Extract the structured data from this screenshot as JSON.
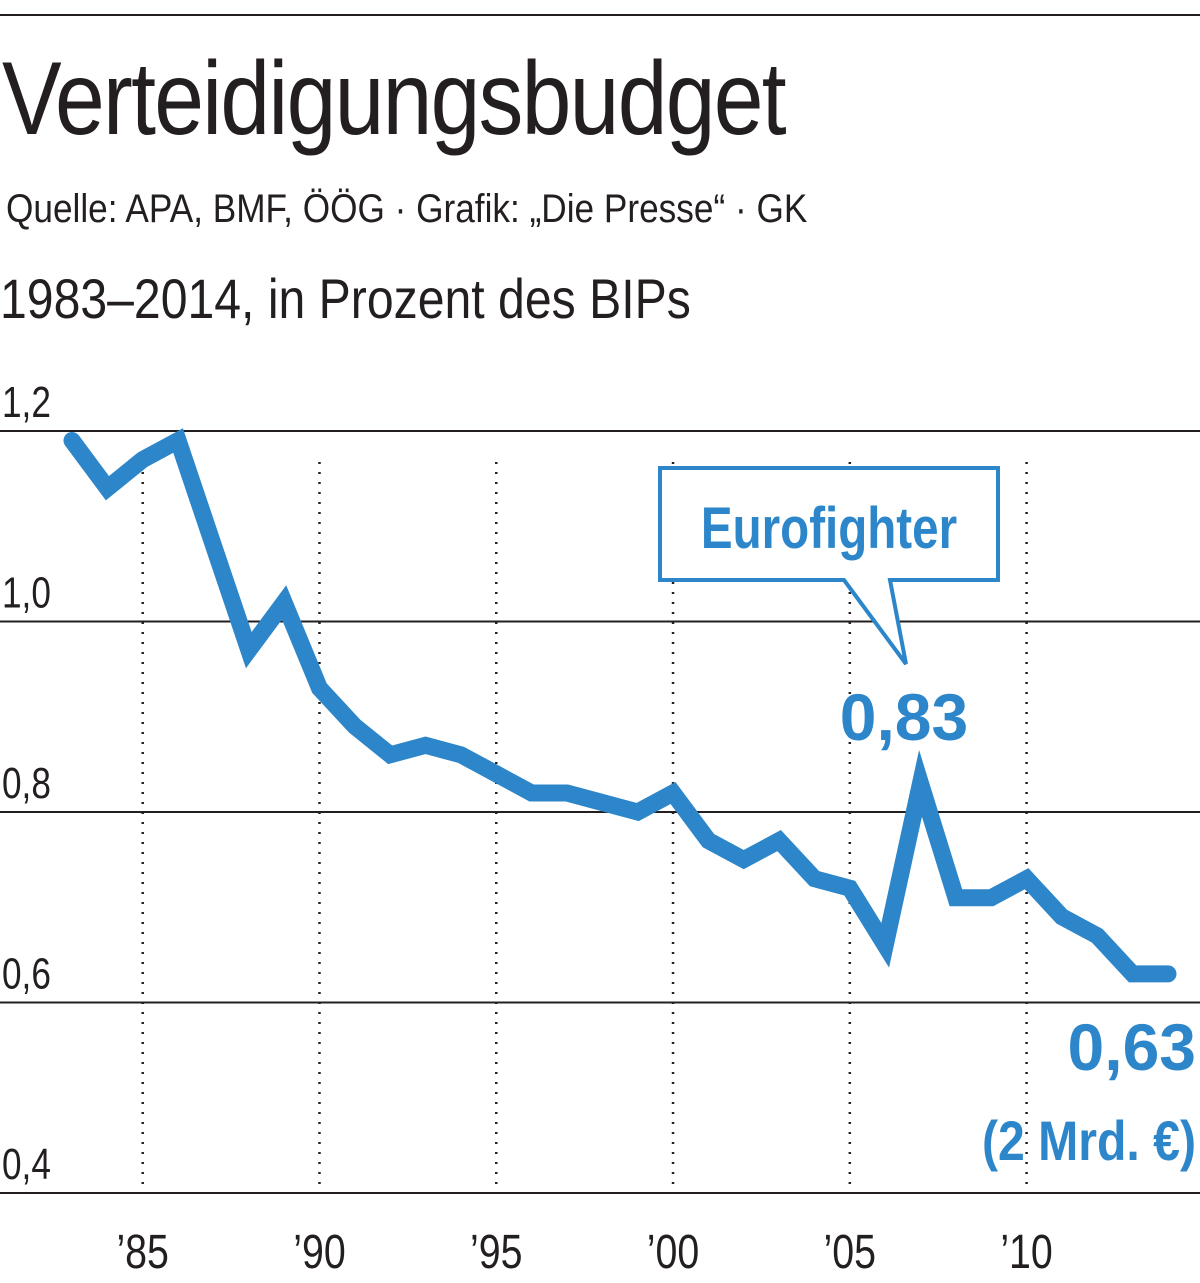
{
  "title": "Verteidigungsbudget",
  "source": "Quelle: APA, BMF, ÖÖG · Grafik: „Die Presse“ · GK",
  "subtitle": "1983–2014, in Prozent des BIPs",
  "colors": {
    "line": "#2c86c9",
    "text": "#231f20",
    "grid": "#231f20"
  },
  "chart_data": {
    "type": "line",
    "title": "Verteidigungsbudget",
    "subtitle": "1983–2014, in Prozent des BIPs",
    "xlabel": "",
    "ylabel": "",
    "xlim": [
      1983,
      2014
    ],
    "ylim": [
      0.4,
      1.2
    ],
    "grid": "horizontal solid lines; vertical dotted lines at labelled years",
    "y_ticks": [
      {
        "value": 1.2,
        "label": "1,2"
      },
      {
        "value": 1.0,
        "label": "1,0"
      },
      {
        "value": 0.8,
        "label": "0,8"
      },
      {
        "value": 0.6,
        "label": "0,6"
      },
      {
        "value": 0.4,
        "label": "0,4"
      }
    ],
    "x_ticks": [
      {
        "value": 1985,
        "label": "’85"
      },
      {
        "value": 1990,
        "label": "’90"
      },
      {
        "value": 1995,
        "label": "’95"
      },
      {
        "value": 2000,
        "label": "’00"
      },
      {
        "value": 2005,
        "label": "’05"
      },
      {
        "value": 2010,
        "label": "’10"
      }
    ],
    "series": [
      {
        "x": [
          1983,
          1984,
          1985,
          1986,
          1987,
          1988,
          1989,
          1990,
          1991,
          1992,
          1993,
          1994,
          1995,
          1996,
          1997,
          1998,
          1999,
          2000,
          2001,
          2002,
          2003,
          2004,
          2005,
          2006,
          2007,
          2008,
          2009,
          2010,
          2011,
          2012,
          2013,
          2014
        ],
        "values": [
          1.19,
          1.14,
          1.17,
          1.19,
          1.08,
          0.97,
          1.02,
          0.93,
          0.89,
          0.86,
          0.87,
          0.86,
          0.84,
          0.82,
          0.82,
          0.81,
          0.8,
          0.82,
          0.77,
          0.75,
          0.77,
          0.73,
          0.72,
          0.66,
          0.83,
          0.71,
          0.71,
          0.73,
          0.69,
          0.67,
          0.63,
          0.63
        ]
      }
    ],
    "annotations": {
      "callout": "Eurofighter",
      "peak_value": "0,83",
      "end_value": "0,63",
      "end_note": "(2 Mrd. €)"
    }
  }
}
